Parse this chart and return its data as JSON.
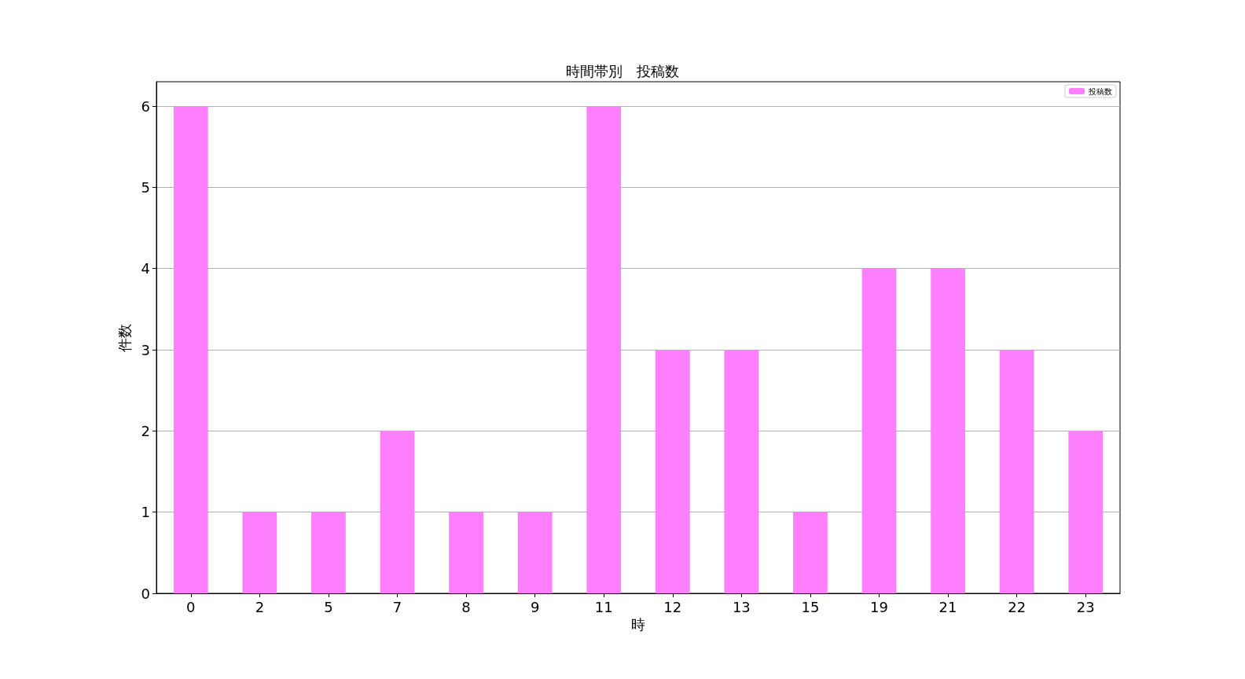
{
  "chart_data": {
    "type": "bar",
    "title": "時間帯別　投稿数",
    "xlabel": "時",
    "ylabel": "件数",
    "categories": [
      "0",
      "2",
      "5",
      "7",
      "8",
      "9",
      "11",
      "12",
      "13",
      "15",
      "19",
      "21",
      "22",
      "23"
    ],
    "series": [
      {
        "name": "投稿数",
        "color": "#ff80ff",
        "values": [
          6,
          1,
          1,
          2,
          1,
          1,
          6,
          3,
          3,
          1,
          4,
          4,
          3,
          2
        ]
      }
    ],
    "ylim": [
      0,
      6.3
    ],
    "yticks": [
      0,
      1,
      2,
      3,
      4,
      5,
      6
    ],
    "grid": "y",
    "legend": "top right"
  }
}
